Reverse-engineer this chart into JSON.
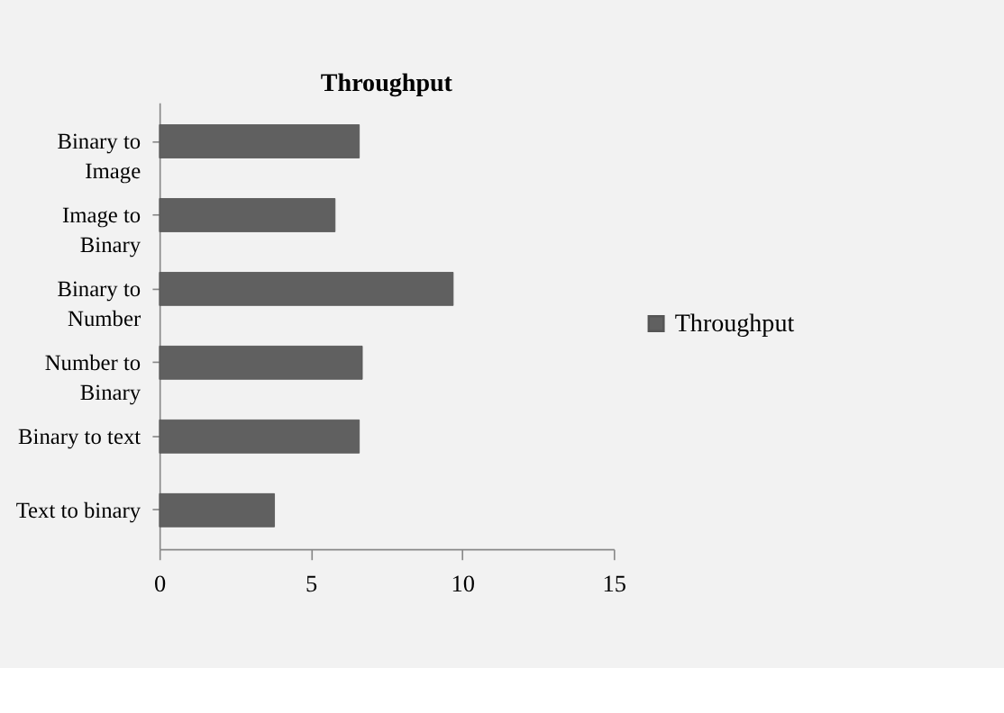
{
  "chart_data": {
    "type": "bar",
    "orientation": "horizontal",
    "title": "Throughput",
    "categories": [
      "Binary to\nImage",
      "Image to\nBinary",
      "Binary to\nNumber",
      "Number to\nBinary",
      "Binary to text",
      "Text to binary"
    ],
    "series": [
      {
        "name": "Throughput",
        "color": "#606060",
        "values": [
          6.6,
          5.8,
          9.7,
          6.7,
          6.6,
          3.8
        ]
      }
    ],
    "xlim": [
      0,
      15
    ],
    "xticks": [
      0,
      5,
      10,
      15
    ],
    "grid": false,
    "legend": "right"
  }
}
